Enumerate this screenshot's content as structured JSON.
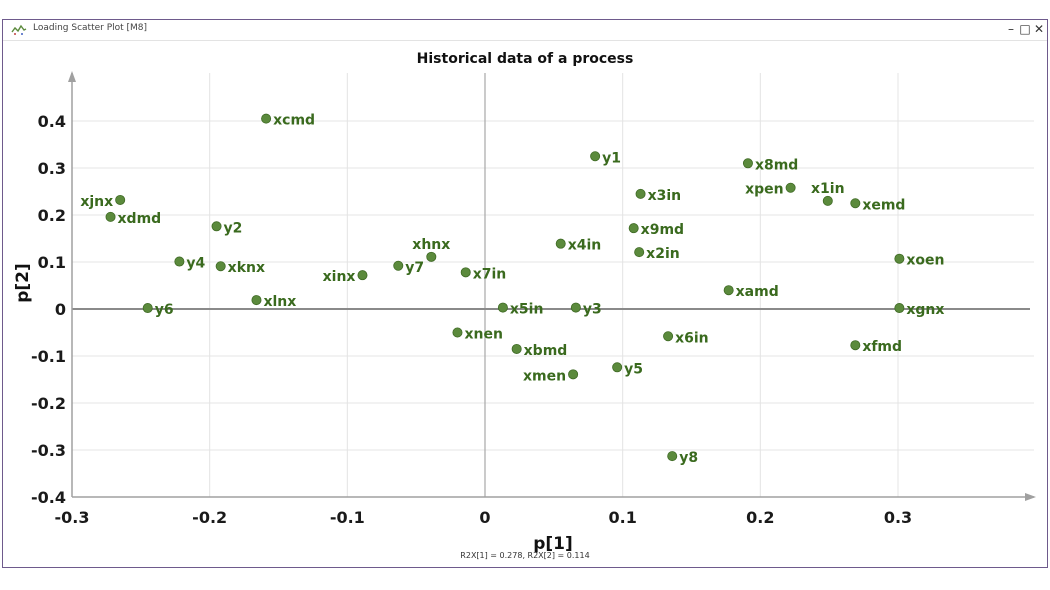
{
  "window": {
    "title": "Loading Scatter Plot [M8]",
    "minimize_glyph": "–",
    "maximize_glyph": "□",
    "close_glyph": "✕",
    "icon": "scatter-plot-icon"
  },
  "chart_data": {
    "type": "scatter",
    "title": "Historical data of a process",
    "xlabel": "p[1]",
    "ylabel": "p[2]",
    "footer": "R2X[1] = 0.278, R2X[2] = 0.114",
    "xlim": [
      -0.3,
      0.4
    ],
    "ylim": [
      -0.4,
      0.47
    ],
    "xticks": [
      -0.3,
      -0.2,
      -0.1,
      0,
      0.1,
      0.2,
      0.3
    ],
    "xtick_labels": [
      "-0.3",
      "-0.2",
      "-0.1",
      "0",
      "0.1",
      "0.2",
      "0.3"
    ],
    "yticks": [
      -0.4,
      -0.3,
      -0.2,
      -0.1,
      0,
      0.1,
      0.2,
      0.3,
      0.4
    ],
    "ytick_labels": [
      "-0.4",
      "-0.3",
      "-0.2",
      "-0.1",
      "0",
      "0.1",
      "0.2",
      "0.3",
      "0.4"
    ],
    "grid": true,
    "point_color": "#5b8a3c",
    "label_color": "#3a6a1e",
    "points": [
      {
        "name": "xcmd",
        "x": -0.159,
        "y": 0.405,
        "label_pos": "right"
      },
      {
        "name": "y1",
        "x": 0.08,
        "y": 0.325,
        "label_pos": "right"
      },
      {
        "name": "x8md",
        "x": 0.191,
        "y": 0.31,
        "label_pos": "right"
      },
      {
        "name": "xpen",
        "x": 0.222,
        "y": 0.258,
        "label_pos": "left"
      },
      {
        "name": "x1in",
        "x": 0.249,
        "y": 0.23,
        "label_pos": "above"
      },
      {
        "name": "xemd",
        "x": 0.269,
        "y": 0.225,
        "label_pos": "right"
      },
      {
        "name": "x3in",
        "x": 0.113,
        "y": 0.245,
        "label_pos": "right"
      },
      {
        "name": "xjnx",
        "x": -0.265,
        "y": 0.232,
        "label_pos": "left"
      },
      {
        "name": "xdmd",
        "x": -0.272,
        "y": 0.196,
        "label_pos": "right"
      },
      {
        "name": "y2",
        "x": -0.195,
        "y": 0.176,
        "label_pos": "right"
      },
      {
        "name": "x9md",
        "x": 0.108,
        "y": 0.172,
        "label_pos": "right"
      },
      {
        "name": "x4in",
        "x": 0.055,
        "y": 0.139,
        "label_pos": "right"
      },
      {
        "name": "x2in",
        "x": 0.112,
        "y": 0.121,
        "label_pos": "right"
      },
      {
        "name": "xhnx",
        "x": -0.039,
        "y": 0.111,
        "label_pos": "above"
      },
      {
        "name": "xoen",
        "x": 0.301,
        "y": 0.107,
        "label_pos": "right"
      },
      {
        "name": "y4",
        "x": -0.222,
        "y": 0.101,
        "label_pos": "right"
      },
      {
        "name": "y7",
        "x": -0.063,
        "y": 0.092,
        "label_pos": "right"
      },
      {
        "name": "xknx",
        "x": -0.192,
        "y": 0.091,
        "label_pos": "right"
      },
      {
        "name": "x7in",
        "x": -0.014,
        "y": 0.078,
        "label_pos": "right"
      },
      {
        "name": "xinx",
        "x": -0.089,
        "y": 0.072,
        "label_pos": "left"
      },
      {
        "name": "xamd",
        "x": 0.177,
        "y": 0.04,
        "label_pos": "right"
      },
      {
        "name": "xlnx",
        "x": -0.166,
        "y": 0.019,
        "label_pos": "right"
      },
      {
        "name": "y6",
        "x": -0.245,
        "y": 0.002,
        "label_pos": "right"
      },
      {
        "name": "x5in",
        "x": 0.013,
        "y": 0.003,
        "label_pos": "right"
      },
      {
        "name": "y3",
        "x": 0.066,
        "y": 0.003,
        "label_pos": "right"
      },
      {
        "name": "xgnx",
        "x": 0.301,
        "y": 0.002,
        "label_pos": "right"
      },
      {
        "name": "xnen",
        "x": -0.02,
        "y": -0.05,
        "label_pos": "right"
      },
      {
        "name": "x6in",
        "x": 0.133,
        "y": -0.058,
        "label_pos": "right"
      },
      {
        "name": "xfmd",
        "x": 0.269,
        "y": -0.077,
        "label_pos": "right"
      },
      {
        "name": "xbmd",
        "x": 0.023,
        "y": -0.085,
        "label_pos": "right"
      },
      {
        "name": "y5",
        "x": 0.096,
        "y": -0.124,
        "label_pos": "right"
      },
      {
        "name": "xmen",
        "x": 0.064,
        "y": -0.139,
        "label_pos": "left"
      },
      {
        "name": "y8",
        "x": 0.136,
        "y": -0.313,
        "label_pos": "right"
      }
    ]
  }
}
